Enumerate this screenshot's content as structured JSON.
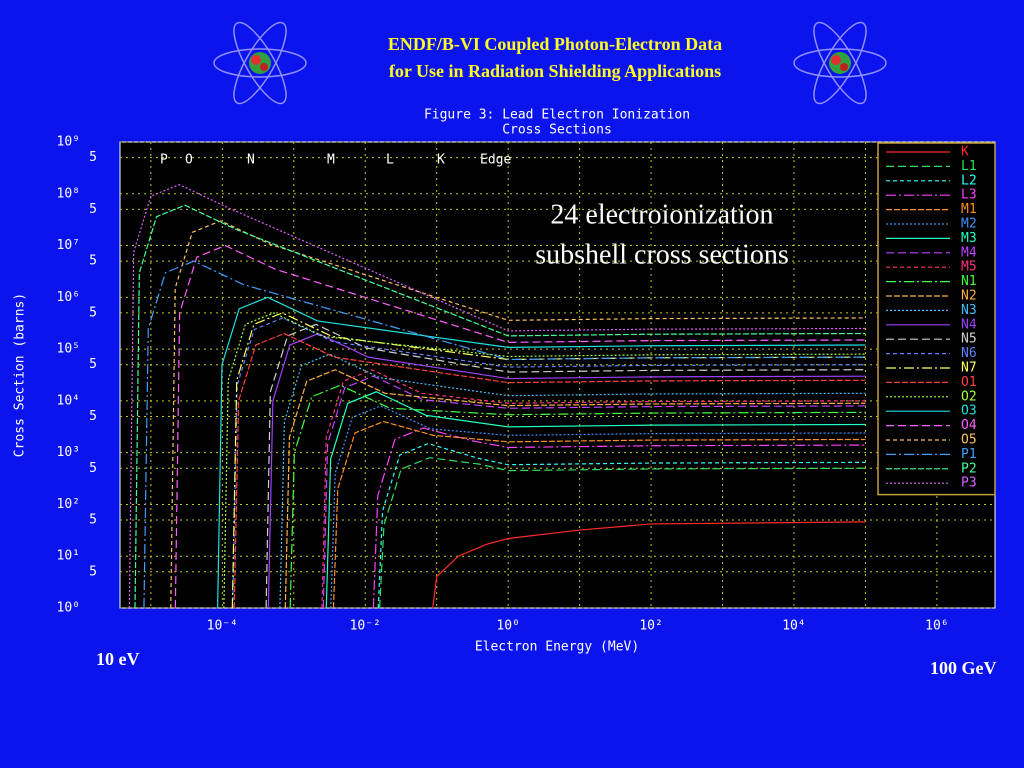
{
  "header": {
    "title_lines": [
      "ENDF/B-VI Coupled Photon-Electron Data",
      "for Use in Radiation Shielding Applications"
    ]
  },
  "chart_data": {
    "type": "line",
    "title_lines": [
      "Figure 3: Lead Electron Ionization",
      "Cross Sections"
    ],
    "x_label": "Electron Energy (MeV)",
    "y_label": "Cross Section (barns)",
    "edge_labels": [
      "P",
      "O",
      "N",
      "M",
      "L",
      "K",
      "Edge"
    ],
    "log_x": true,
    "log_y": true,
    "grid": true,
    "legend_position": "right",
    "xlim": [
      3.7e-06,
      6500000
    ],
    "ylim": [
      1,
      1000000000
    ],
    "xticks": [
      {
        "value": 0.0001,
        "label": "10⁻⁴"
      },
      {
        "value": 0.01,
        "label": "10⁻²"
      },
      {
        "value": 1,
        "label": "10⁰"
      },
      {
        "value": 100,
        "label": "10²"
      },
      {
        "value": 10000,
        "label": "10⁴"
      },
      {
        "value": 1000000,
        "label": "10⁶"
      }
    ],
    "xminorticks": [
      1e-05,
      0.001,
      0.1,
      10,
      1000,
      100000
    ],
    "yticks": [
      {
        "value": 1,
        "label": "10⁰"
      },
      {
        "value": 5,
        "label": "5"
      },
      {
        "value": 10,
        "label": "10¹"
      },
      {
        "value": 50,
        "label": "5"
      },
      {
        "value": 100,
        "label": "10²"
      },
      {
        "value": 500,
        "label": "5"
      },
      {
        "value": 1000,
        "label": "10³"
      },
      {
        "value": 5000,
        "label": "5"
      },
      {
        "value": 10000,
        "label": "10⁴"
      },
      {
        "value": 50000,
        "label": "5"
      },
      {
        "value": 100000,
        "label": "10⁵"
      },
      {
        "value": 500000,
        "label": "5"
      },
      {
        "value": 1000000,
        "label": "10⁶"
      },
      {
        "value": 5000000,
        "label": "5"
      },
      {
        "value": 10000000,
        "label": "10⁷"
      },
      {
        "value": 50000000,
        "label": "5"
      },
      {
        "value": 100000000,
        "label": "10⁸"
      },
      {
        "value": 500000000,
        "label": "5"
      },
      {
        "value": 1000000000,
        "label": "10⁹"
      }
    ],
    "series": [
      {
        "name": "K",
        "color": "#ff2a2a",
        "x": [
          0.088,
          0.1,
          0.2,
          0.5,
          1,
          10,
          100,
          100000
        ],
        "values": [
          1,
          4,
          10,
          17,
          22,
          32,
          42,
          46
        ]
      },
      {
        "name": "L1",
        "color": "#30e060",
        "x": [
          0.0159,
          0.0183,
          0.0318,
          0.0795,
          0.3975,
          1,
          100,
          100000
        ],
        "values": [
          1,
          40,
          480,
          800,
          600,
          450,
          485,
          500
        ]
      },
      {
        "name": "L2",
        "color": "#30ffff",
        "x": [
          0.0152,
          0.0175,
          0.0304,
          0.076,
          0.38,
          1,
          100,
          100000
        ],
        "values": [
          1,
          75,
          900,
          1500,
          780,
          585,
          630,
          650
        ]
      },
      {
        "name": "L3",
        "color": "#ff40ff",
        "x": [
          0.013,
          0.015,
          0.026,
          0.065,
          0.325,
          1,
          100,
          100000
        ],
        "values": [
          1,
          150,
          1800,
          3000,
          1680,
          1260,
          1360,
          1400
        ]
      },
      {
        "name": "M1",
        "color": "#ff9020",
        "x": [
          0.00359,
          0.00413,
          0.00718,
          0.018,
          0.0898,
          1,
          100,
          100000
        ],
        "values": [
          1,
          200,
          2400,
          4000,
          2160,
          1620,
          1750,
          1800
        ]
      },
      {
        "name": "M2",
        "color": "#4090ff",
        "x": [
          0.0033,
          0.0038,
          0.0066,
          0.0165,
          0.0825,
          1,
          100,
          100000
        ],
        "values": [
          1,
          400,
          4800,
          8000,
          2880,
          2160,
          2330,
          2400
        ]
      },
      {
        "name": "M3",
        "color": "#20ffc0",
        "x": [
          0.00285,
          0.00328,
          0.0057,
          0.0143,
          0.0713,
          1,
          100,
          100000
        ],
        "values": [
          1,
          750,
          9000,
          15000,
          5250,
          3150,
          3400,
          3500
        ]
      },
      {
        "name": "M4",
        "color": "#c040ff",
        "x": [
          0.00259,
          0.00298,
          0.00518,
          0.013,
          0.0648,
          1,
          100,
          100000
        ],
        "values": [
          1,
          1500,
          18000,
          30000,
          10500,
          7200,
          7760,
          8000
        ]
      },
      {
        "name": "M5",
        "color": "#ff3080",
        "x": [
          0.00248,
          0.00285,
          0.00496,
          0.0124,
          0.062,
          1,
          100,
          100000
        ],
        "values": [
          1,
          2000,
          24000,
          40000,
          14000,
          9000,
          9700,
          10000
        ]
      },
      {
        "name": "N1",
        "color": "#40ff40",
        "x": [
          0.00089,
          0.00102,
          0.00178,
          0.00445,
          0.0223,
          1,
          100,
          100000
        ],
        "values": [
          1,
          1000,
          12000,
          20000,
          7200,
          5400,
          5820,
          6000
        ]
      },
      {
        "name": "N2",
        "color": "#ffb040",
        "x": [
          0.00076,
          0.00087,
          0.00152,
          0.0038,
          0.019,
          1,
          100,
          100000
        ],
        "values": [
          1,
          2000,
          24000,
          40000,
          14000,
          8100,
          8730,
          9000
        ]
      },
      {
        "name": "N3",
        "color": "#40c0ff",
        "x": [
          0.00064,
          0.00074,
          0.00128,
          0.0032,
          0.016,
          1,
          100,
          100000
        ],
        "values": [
          1,
          4000,
          48000,
          80000,
          28000,
          12600,
          13600,
          14000
        ]
      },
      {
        "name": "N4",
        "color": "#a040ff",
        "x": [
          0.00044,
          0.00051,
          0.00088,
          0.0022,
          0.011,
          1,
          100,
          100000
        ],
        "values": [
          1,
          10000,
          120000,
          200000,
          70000,
          27000,
          29100,
          30000
        ]
      },
      {
        "name": "N5",
        "color": "#d0d0d0",
        "x": [
          0.00041,
          0.00047,
          0.00082,
          0.00205,
          0.0103,
          1,
          100,
          100000
        ],
        "values": [
          1,
          15000,
          180000,
          300000,
          105000,
          36000,
          38800,
          40000
        ]
      },
      {
        "name": "N6",
        "color": "#6080ff",
        "x": [
          0.00014,
          0.000161,
          0.00028,
          0.0007,
          0.0035,
          1,
          100,
          100000
        ],
        "values": [
          1,
          20000,
          240000,
          400000,
          140000,
          45000,
          48500,
          50000
        ]
      },
      {
        "name": "N7",
        "color": "#ffff60",
        "x": [
          0.000138,
          0.000159,
          0.000276,
          0.00069,
          0.00345,
          1,
          100,
          100000
        ],
        "values": [
          1,
          25000,
          300000,
          500000,
          175000,
          63000,
          67900,
          70000
        ]
      },
      {
        "name": "O1",
        "color": "#ff4040",
        "x": [
          0.000147,
          0.000169,
          0.000294,
          0.000735,
          0.00368,
          1,
          100,
          100000
        ],
        "values": [
          1,
          10000,
          120000,
          200000,
          70000,
          22500,
          24300,
          25000
        ]
      },
      {
        "name": "O2",
        "color": "#a0ff40",
        "x": [
          0.000105,
          0.000121,
          0.00021,
          0.000525,
          0.00263,
          1,
          100,
          100000
        ],
        "values": [
          1,
          25000,
          300000,
          500000,
          175000,
          72000,
          77600,
          80000
        ]
      },
      {
        "name": "O3",
        "color": "#20e0e0",
        "x": [
          8.6e-05,
          9.89e-05,
          0.000172,
          0.00043,
          0.00215,
          1,
          100,
          100000
        ],
        "values": [
          1,
          50000,
          600000,
          1000000,
          350000,
          108000,
          116000,
          120000
        ]
      },
      {
        "name": "O4",
        "color": "#ff60ff",
        "x": [
          2.2e-05,
          2.53e-05,
          4.4e-05,
          0.00011,
          0.00055,
          1,
          100,
          100000
        ],
        "values": [
          1,
          500000,
          6000000,
          10000000,
          3500000,
          135000,
          146000,
          150000
        ]
      },
      {
        "name": "O5",
        "color": "#ffc060",
        "x": [
          1.9e-05,
          2.19e-05,
          3.8e-05,
          9.5e-05,
          0.000475,
          1,
          100,
          100000
        ],
        "values": [
          1,
          1500000,
          18000000,
          30000000,
          10500000,
          360000,
          388000,
          400000
        ]
      },
      {
        "name": "P1",
        "color": "#40a0ff",
        "x": [
          8e-06,
          9.2e-06,
          1.6e-05,
          4e-05,
          0.0002,
          1,
          100,
          100000
        ],
        "values": [
          1,
          250000,
          3000000,
          5000000,
          1750000,
          63000,
          67900,
          70000
        ]
      },
      {
        "name": "P2",
        "color": "#40ffa0",
        "x": [
          6e-06,
          6.9e-06,
          1.2e-05,
          3e-05,
          0.00015,
          1,
          100,
          100000
        ],
        "values": [
          1,
          3000000,
          36000000,
          60000000,
          21000000,
          180000,
          194000,
          200000
        ]
      },
      {
        "name": "P3",
        "color": "#e060ff",
        "x": [
          5e-06,
          5.75e-06,
          1e-05,
          2.5e-05,
          0.000125,
          1,
          100,
          100000
        ],
        "values": [
          1,
          7500000,
          90000000,
          150000000,
          52500000,
          225000,
          243000,
          250000
        ]
      }
    ]
  },
  "notes": {
    "annotation_lines": [
      "24 electroionization",
      "subshell cross sections"
    ],
    "range_labels": [
      "10 eV",
      "100 GeV"
    ]
  }
}
